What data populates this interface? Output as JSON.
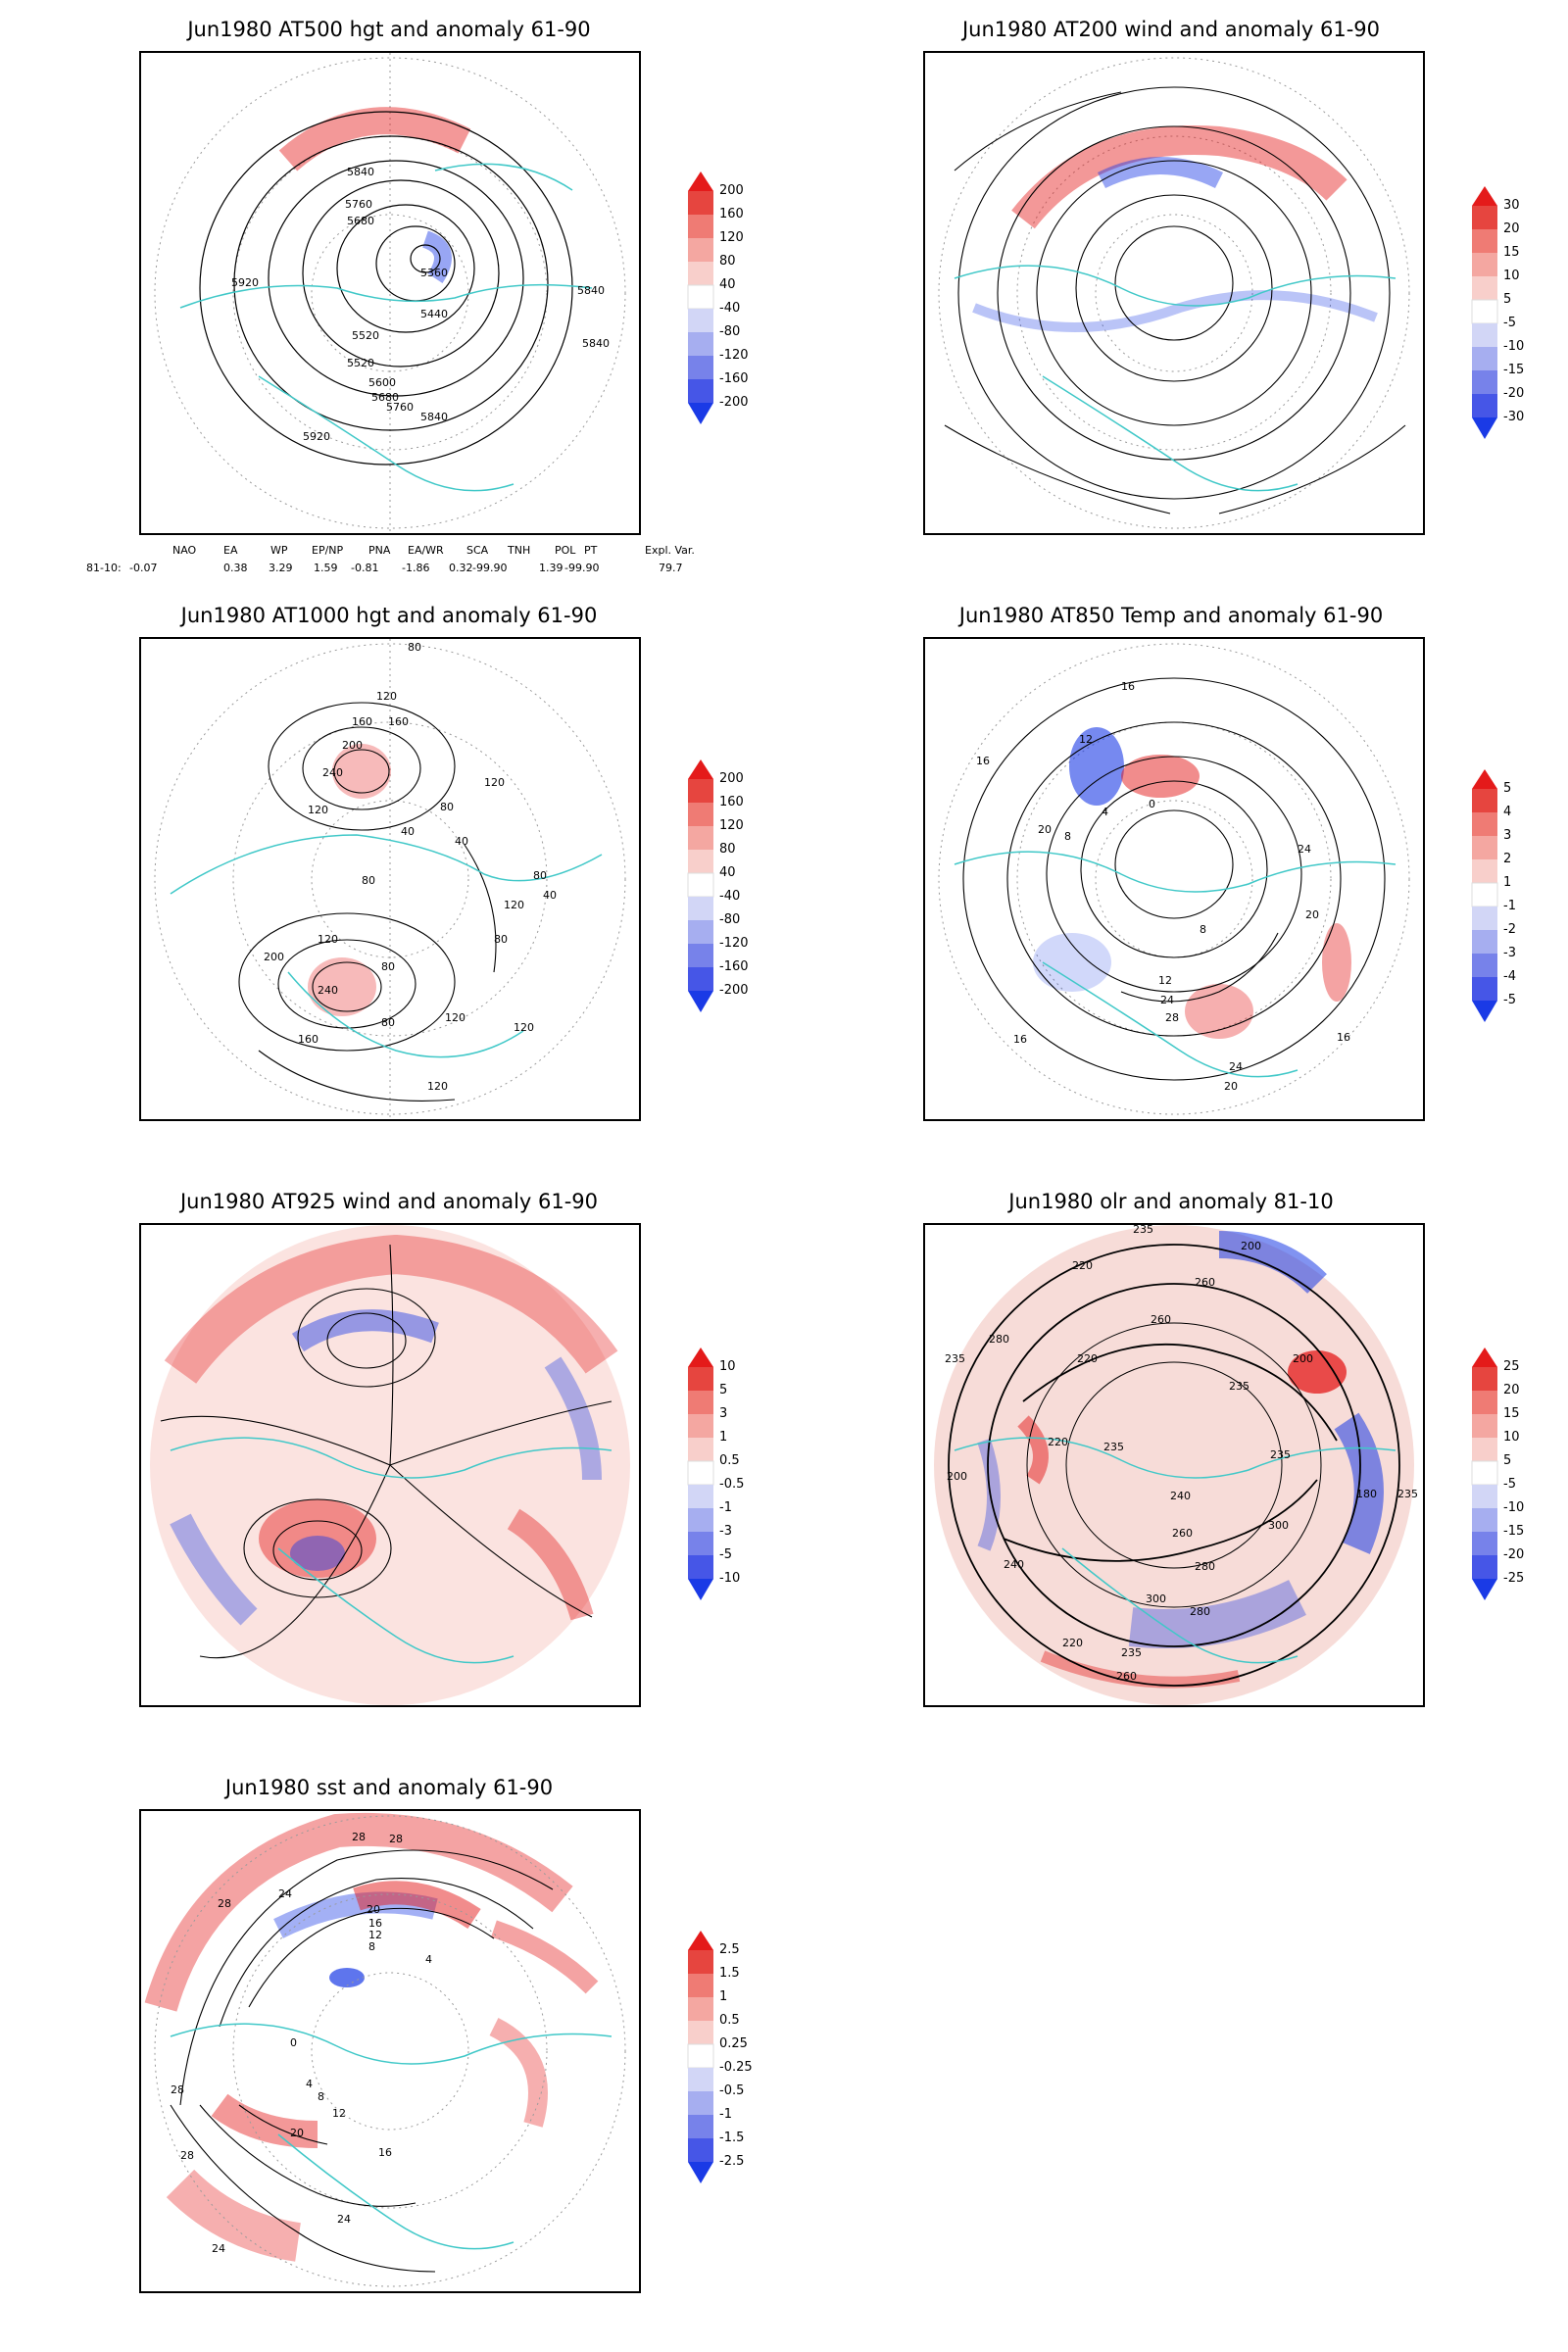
{
  "panels": [
    {
      "title": "Jun1980 AT500 hgt and anomaly 61-90",
      "contour_labels": [
        "5840",
        "5760",
        "5680",
        "5920",
        "5360",
        "5440",
        "5520",
        "5520",
        "5600",
        "5680",
        "5760",
        "5840",
        "5920",
        "5840",
        "5840"
      ],
      "colorbar": [
        "200",
        "160",
        "120",
        "80",
        "40",
        "-40",
        "-80",
        "-120",
        "-160",
        "-200"
      ]
    },
    {
      "title": "Jun1980 AT200 wind and anomaly 61-90",
      "contour_labels": [],
      "colorbar": [
        "30",
        "20",
        "15",
        "10",
        "5",
        "-5",
        "-10",
        "-15",
        "-20",
        "-30"
      ]
    },
    {
      "title": "Jun1980 AT1000 hgt and anomaly 61-90",
      "contour_labels": [
        "80",
        "120",
        "160",
        "160",
        "200",
        "240",
        "120",
        "40",
        "40",
        "80",
        "80",
        "120",
        "40",
        "80",
        "120",
        "80",
        "200",
        "240",
        "160",
        "120",
        "80",
        "80",
        "120",
        "120",
        "120"
      ],
      "colorbar": [
        "200",
        "160",
        "120",
        "80",
        "40",
        "-40",
        "-80",
        "-120",
        "-160",
        "-200"
      ]
    },
    {
      "title": "Jun1980 AT850 Temp and anomaly 61-90",
      "contour_labels": [
        "16",
        "12",
        "16",
        "20",
        "8",
        "4",
        "0",
        "8",
        "24",
        "12",
        "24",
        "28",
        "20",
        "16",
        "20",
        "24",
        "16"
      ],
      "colorbar": [
        "5",
        "4",
        "3",
        "2",
        "1",
        "-1",
        "-2",
        "-3",
        "-4",
        "-5"
      ]
    },
    {
      "title": "Jun1980 AT925 wind and anomaly 61-90",
      "contour_labels": [],
      "colorbar": [
        "10",
        "5",
        "3",
        "1",
        "0.5",
        "-0.5",
        "-1",
        "-3",
        "-5",
        "-10"
      ]
    },
    {
      "title": "Jun1980 olr and anomaly 81-10",
      "contour_labels": [
        "235",
        "200",
        "220",
        "260",
        "280",
        "235",
        "220",
        "235",
        "200",
        "260",
        "235",
        "235",
        "220",
        "240",
        "200",
        "180",
        "235",
        "300",
        "260",
        "280",
        "240",
        "235",
        "220",
        "260",
        "300",
        "280"
      ],
      "colorbar": [
        "25",
        "20",
        "15",
        "10",
        "5",
        "-5",
        "-10",
        "-15",
        "-20",
        "-25"
      ]
    },
    {
      "title": "Jun1980 sst and anomaly 61-90",
      "contour_labels": [
        "28",
        "28",
        "28",
        "24",
        "20",
        "16",
        "12",
        "8",
        "4",
        "0",
        "4",
        "8",
        "12",
        "16",
        "20",
        "24",
        "28",
        "28",
        "24"
      ],
      "colorbar": [
        "2.5",
        "1.5",
        "1",
        "0.5",
        "0.25",
        "-0.25",
        "-0.5",
        "-1",
        "-1.5",
        "-2.5"
      ]
    }
  ],
  "index_table": {
    "headers": [
      "NAO",
      "EA",
      "WP",
      "EP/NP",
      "PNA",
      "EA/WR",
      "SCA",
      "TNH",
      "POL",
      "PT",
      "Expl. Var."
    ],
    "row_label": "81-10:",
    "values": [
      "-0.07",
      "0.38",
      "3.29",
      "1.59",
      "-0.81",
      "-1.86",
      "0.32",
      "-99.90",
      "1.39",
      "-99.90",
      "79.7"
    ]
  },
  "colors": {
    "coast": "#40c8c8",
    "red_strong": "#e41a1a",
    "red_light": "#f6c3bf",
    "blue_strong": "#1a3ae6",
    "blue_light": "#c6cbf2",
    "contour": "#000000"
  }
}
